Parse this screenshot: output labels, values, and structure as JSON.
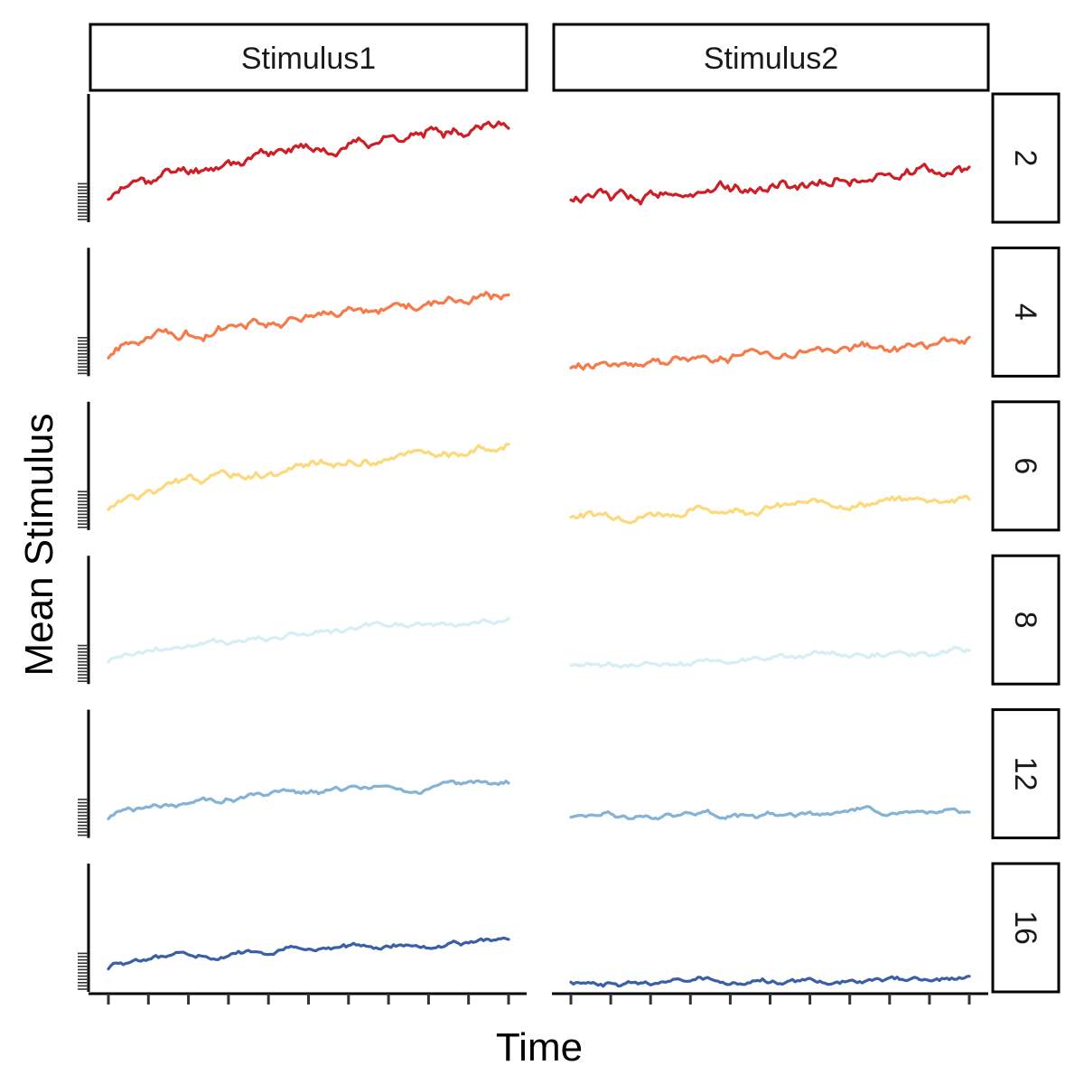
{
  "chart_data": {
    "type": "line",
    "title": "",
    "xlabel": "Time",
    "ylabel": "Mean Stimulus",
    "columns": [
      "Stimulus1",
      "Stimulus2"
    ],
    "rows": [
      "2",
      "4",
      "6",
      "8",
      "12",
      "16"
    ],
    "x_tick_count": 11,
    "y_minor_tick_count": 12,
    "ylim": [
      0,
      1
    ],
    "grid": false,
    "legend": "none",
    "colors": {
      "2": "#cf1f26",
      "4": "#f67b4b",
      "6": "#fdd97c",
      "8": "#d7eef5",
      "12": "#84b3d6",
      "16": "#3b5fa6"
    },
    "series": [
      {
        "column": "Stimulus1",
        "row": "2",
        "start": 0.15,
        "end": 0.79,
        "wiggle": 0.035,
        "seed": 11
      },
      {
        "column": "Stimulus2",
        "row": "2",
        "start": 0.16,
        "end": 0.42,
        "wiggle": 0.035,
        "seed": 12
      },
      {
        "column": "Stimulus1",
        "row": "4",
        "start": 0.15,
        "end": 0.64,
        "wiggle": 0.03,
        "seed": 21
      },
      {
        "column": "Stimulus2",
        "row": "4",
        "start": 0.08,
        "end": 0.26,
        "wiggle": 0.028,
        "seed": 22
      },
      {
        "column": "Stimulus1",
        "row": "6",
        "start": 0.15,
        "end": 0.66,
        "wiggle": 0.028,
        "seed": 31
      },
      {
        "column": "Stimulus2",
        "row": "6",
        "start": 0.1,
        "end": 0.25,
        "wiggle": 0.025,
        "seed": 32
      },
      {
        "column": "Stimulus1",
        "row": "8",
        "start": 0.15,
        "end": 0.5,
        "wiggle": 0.02,
        "seed": 41
      },
      {
        "column": "Stimulus2",
        "row": "8",
        "start": 0.12,
        "end": 0.26,
        "wiggle": 0.02,
        "seed": 42
      },
      {
        "column": "Stimulus1",
        "row": "12",
        "start": 0.15,
        "end": 0.44,
        "wiggle": 0.018,
        "seed": 51
      },
      {
        "column": "Stimulus2",
        "row": "12",
        "start": 0.16,
        "end": 0.2,
        "wiggle": 0.018,
        "seed": 52
      },
      {
        "column": "Stimulus1",
        "row": "16",
        "start": 0.17,
        "end": 0.4,
        "wiggle": 0.016,
        "seed": 61
      },
      {
        "column": "Stimulus2",
        "row": "16",
        "start": 0.06,
        "end": 0.08,
        "wiggle": 0.016,
        "seed": 62
      }
    ]
  }
}
